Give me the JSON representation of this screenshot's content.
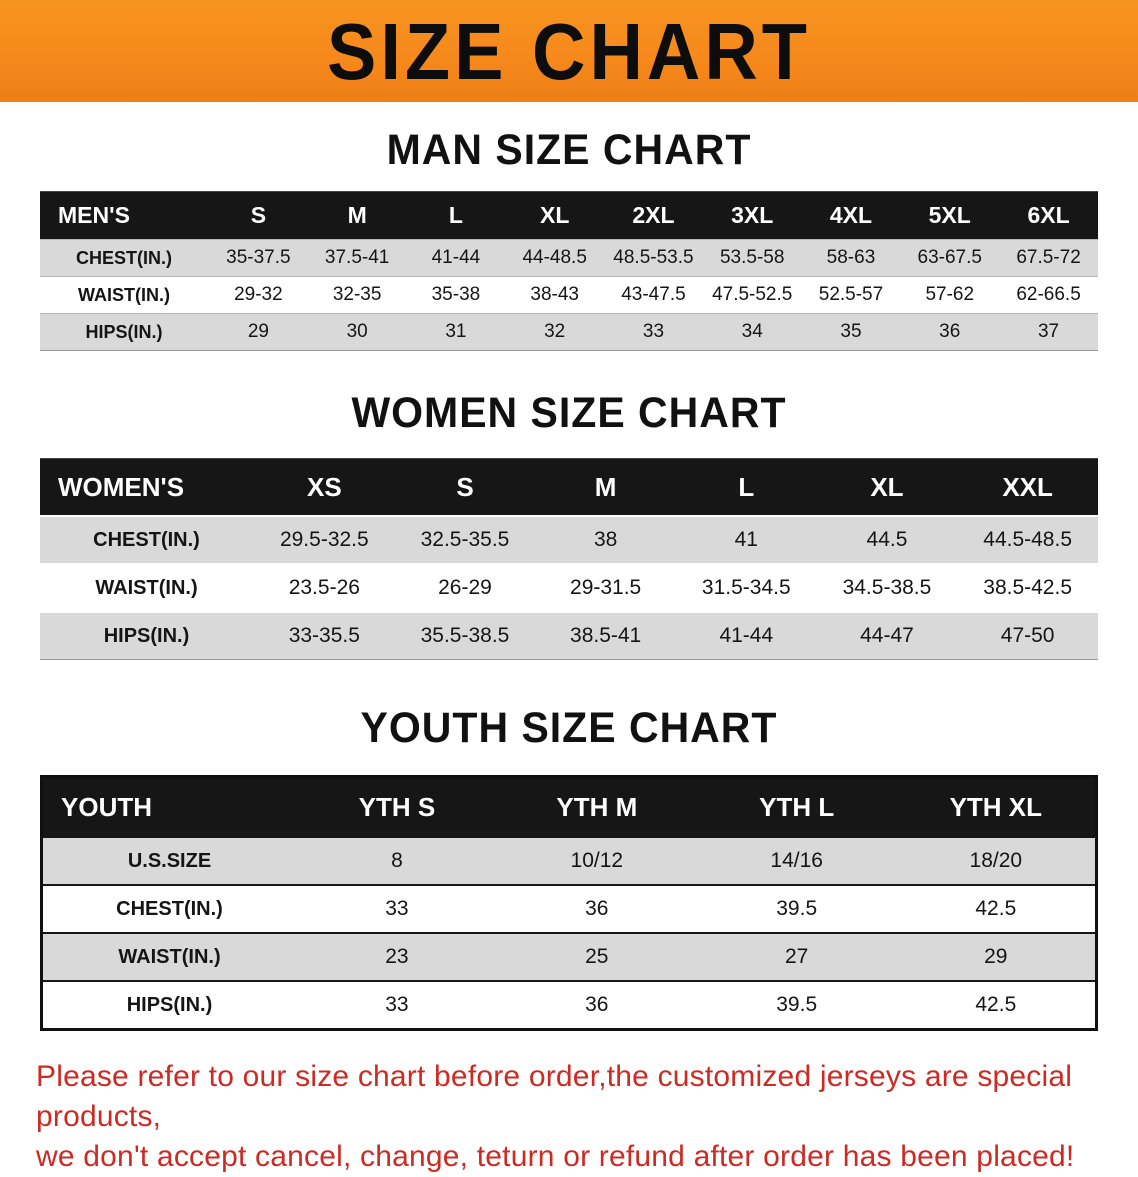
{
  "banner": {
    "title": "SIZE CHART",
    "bg_color": "#f6891c",
    "title_color": "#0d0d0d"
  },
  "colors": {
    "header_bar": "#161616",
    "row_gray": "#d9d9d9",
    "row_white": "#ffffff",
    "footer_red": "#cd2a24"
  },
  "sections": [
    {
      "heading": "MAN SIZE CHART",
      "table": {
        "header": [
          "MEN'S",
          "S",
          "M",
          "L",
          "XL",
          "2XL",
          "3XL",
          "4XL",
          "5XL",
          "6XL"
        ],
        "rows": [
          {
            "label": "CHEST(IN.)",
            "values": [
              "35-37.5",
              "37.5-41",
              "41-44",
              "44-48.5",
              "48.5-53.5",
              "53.5-58",
              "58-63",
              "63-67.5",
              "67.5-72"
            ]
          },
          {
            "label": "WAIST(IN.)",
            "values": [
              "29-32",
              "32-35",
              "35-38",
              "38-43",
              "43-47.5",
              "47.5-52.5",
              "52.5-57",
              "57-62",
              "62-66.5"
            ]
          },
          {
            "label": "HIPS(IN.)",
            "values": [
              "29",
              "30",
              "31",
              "32",
              "33",
              "34",
              "35",
              "36",
              "37"
            ]
          }
        ]
      }
    },
    {
      "heading": "WOMEN SIZE CHART",
      "table": {
        "header": [
          "WOMEN'S",
          "XS",
          "S",
          "M",
          "L",
          "XL",
          "XXL"
        ],
        "rows": [
          {
            "label": "CHEST(IN.)",
            "values": [
              "29.5-32.5",
              "32.5-35.5",
              "38",
              "41",
              "44.5",
              "44.5-48.5"
            ]
          },
          {
            "label": "WAIST(IN.)",
            "values": [
              "23.5-26",
              "26-29",
              "29-31.5",
              "31.5-34.5",
              "34.5-38.5",
              "38.5-42.5"
            ]
          },
          {
            "label": "HIPS(IN.)",
            "values": [
              "33-35.5",
              "35.5-38.5",
              "38.5-41",
              "41-44",
              "44-47",
              "47-50"
            ]
          }
        ]
      }
    },
    {
      "heading": "YOUTH SIZE CHART",
      "table": {
        "header": [
          "YOUTH",
          "YTH S",
          "YTH M",
          "YTH L",
          "YTH XL"
        ],
        "rows": [
          {
            "label": "U.S.SIZE",
            "values": [
              "8",
              "10/12",
              "14/16",
              "18/20"
            ]
          },
          {
            "label": "CHEST(IN.)",
            "values": [
              "33",
              "36",
              "39.5",
              "42.5"
            ]
          },
          {
            "label": "WAIST(IN.)",
            "values": [
              "23",
              "25",
              "27",
              "29"
            ]
          },
          {
            "label": "HIPS(IN.)",
            "values": [
              "33",
              "36",
              "39.5",
              "42.5"
            ]
          }
        ]
      }
    }
  ],
  "footer": {
    "line1": "Please refer to our size chart before order,the customized jerseys are special products,",
    "line2": "we don't accept cancel, change, teturn or refund after order has been placed!"
  }
}
